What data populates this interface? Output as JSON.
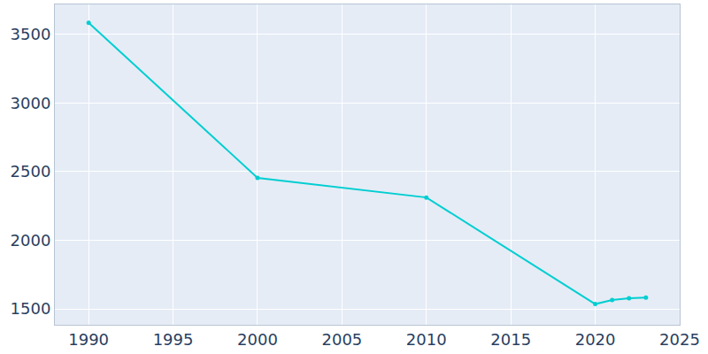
{
  "chart_data": {
    "type": "line",
    "x": [
      1990,
      2000,
      2010,
      2020,
      2021,
      2022,
      2023
    ],
    "values": [
      3585,
      2455,
      2312,
      1535,
      1565,
      1578,
      1582
    ],
    "color": "#00ced1",
    "marker": "circle",
    "line_style": "solid",
    "xlim": [
      1988,
      2025
    ],
    "ylim": [
      1384,
      3719
    ],
    "xticks": [
      1990,
      1995,
      2000,
      2005,
      2010,
      2015,
      2020,
      2025
    ],
    "yticks": [
      1500,
      2000,
      2500,
      3000,
      3500
    ],
    "grid": true
  }
}
